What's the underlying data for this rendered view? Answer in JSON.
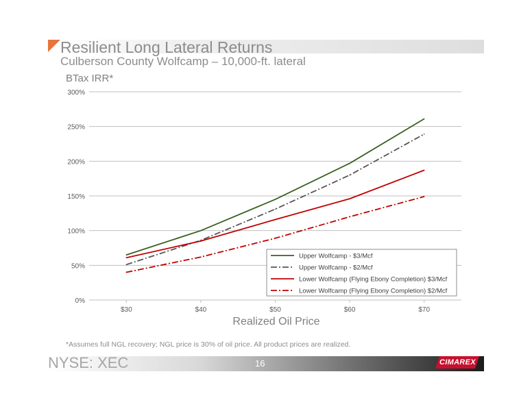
{
  "slide": {
    "title": "Resilient Long Lateral Returns",
    "subtitle": "Culberson County Wolfcamp – 10,000-ft. lateral",
    "footnote": "*Assumes full NGL recovery; NGL price is 30% of oil price. All product prices are realized.",
    "ticker": "NYSE: XEC",
    "page_number": "16",
    "logo_text": "CIMAREX",
    "accent_color": "#e8743b",
    "logo_color": "#c8102e"
  },
  "chart_data": {
    "type": "line",
    "title": "",
    "ylabel": "BTax IRR*",
    "xlabel": "Realized Oil Price",
    "categories": [
      "$30",
      "$40",
      "$50",
      "$60",
      "$70"
    ],
    "x": [
      30,
      40,
      50,
      60,
      70
    ],
    "ylim": [
      0,
      300
    ],
    "yticks": [
      0,
      50,
      100,
      150,
      200,
      250,
      300
    ],
    "ytick_labels": [
      "0%",
      "50%",
      "100%",
      "150%",
      "200%",
      "250%",
      "300%"
    ],
    "grid": true,
    "legend_position": "bottom-right",
    "series": [
      {
        "name": "Upper Wolfcamp - $3/Mcf",
        "values": [
          65,
          100,
          145,
          197,
          261
        ],
        "color": "#3a5f1e",
        "dash": "solid"
      },
      {
        "name": "Upper Wolfcamp - $2/Mcf",
        "values": [
          51,
          86,
          131,
          180,
          239
        ],
        "color": "#555555",
        "dash": "dashdot"
      },
      {
        "name": "Lower Wolfcamp (Flying Ebony Completion) $3/Mcf",
        "values": [
          61,
          85,
          116,
          146,
          187
        ],
        "color": "#c00000",
        "dash": "solid"
      },
      {
        "name": "Lower Wolfcamp (Flying Ebony Completion) $2/Mcf",
        "values": [
          40,
          62,
          89,
          120,
          149
        ],
        "color": "#c00000",
        "dash": "dashdot"
      }
    ]
  }
}
